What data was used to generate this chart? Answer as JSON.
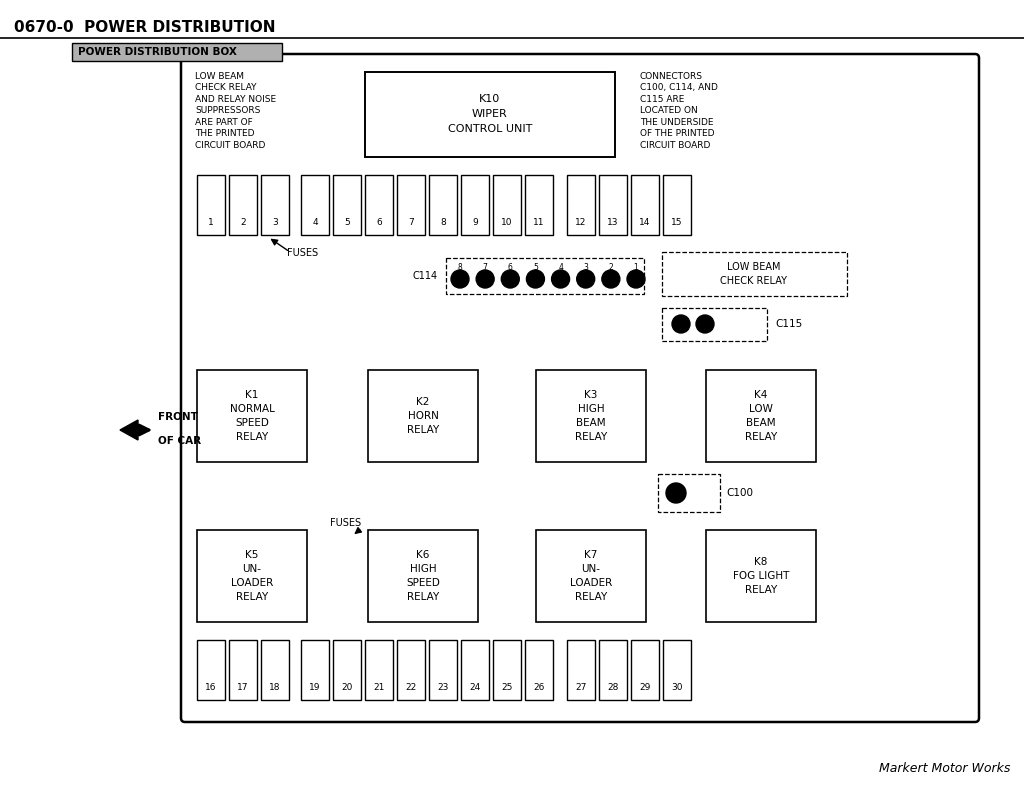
{
  "title": "0670-0  POWER DISTRIBUTION",
  "subtitle": "POWER DISTRIBUTION BOX",
  "background_color": "#ffffff",
  "footer": "Markert Motor Works",
  "left_note": "LOW BEAM\nCHECK RELAY\nAND RELAY NOISE\nSUPPRESSORS\nARE PART OF\nTHE PRINTED\nCIRCUIT BOARD",
  "right_note": "CONNECTORS\nC100, C114, AND\nC115 ARE\nLOCATED ON\nTHE UNDERSIDE\nOF THE PRINTED\nCIRCUIT BOARD",
  "k10_label": "K10\nWIPER\nCONTROL UNIT",
  "front_of_car": "FRONT\nOF CAR",
  "relay_labels_mid": [
    "K1\nNORMAL\nSPEED\nRELAY",
    "K2\nHORN\nRELAY",
    "K3\nHIGH\nBEAM\nRELAY",
    "K4\nLOW\nBEAM\nRELAY"
  ],
  "relay_labels_bot": [
    "K5\nUN-\nLOADER\nRELAY",
    "K6\nHIGH\nSPEED\nRELAY",
    "K7\nUN-\nLOADER\nRELAY",
    "K8\nFOG LIGHT\nRELAY"
  ]
}
